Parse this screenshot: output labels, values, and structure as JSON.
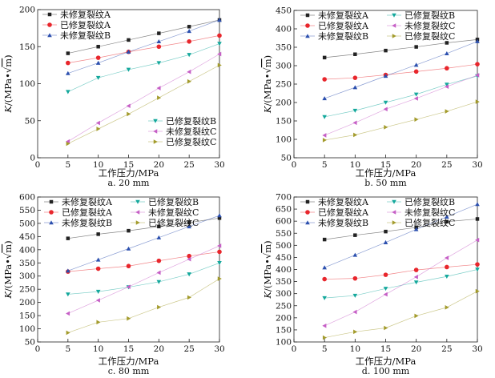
{
  "colors": {
    "unrepaired_A": "#222222",
    "repaired_A": "#e8262c",
    "unrepaired_B": "#2b4fae",
    "repaired_B": "#14a89c",
    "unrepaired_C": "#c65fc6",
    "repaired_C": "#a39b2c"
  },
  "chart_data": [
    {
      "id": "a",
      "type": "line",
      "caption": "a. 20 mm",
      "xlabel": "工作压力/MPa",
      "ylabel_parts": [
        "K",
        "/(MPa•√",
        "m",
        ")"
      ],
      "xlim": [
        0,
        30
      ],
      "ylim": [
        0,
        200
      ],
      "xticks": [
        0,
        5,
        10,
        15,
        20,
        25,
        30
      ],
      "yticks": [
        0,
        50,
        100,
        150,
        200
      ],
      "x": [
        5,
        10,
        15,
        20,
        25,
        30
      ],
      "legend_layout": "split",
      "series": [
        {
          "key": "unrepaired_A",
          "name": "未修复裂纹A",
          "marker": "square",
          "values": [
            141,
            150,
            159,
            168,
            177,
            186
          ]
        },
        {
          "key": "repaired_A",
          "name": "已修复裂纹A",
          "marker": "circle",
          "values": [
            128,
            135,
            143,
            150,
            157,
            165
          ]
        },
        {
          "key": "unrepaired_B",
          "name": "未修复裂纹B",
          "marker": "tri-up",
          "values": [
            114,
            128,
            143,
            157,
            171,
            186
          ]
        },
        {
          "key": "repaired_B",
          "name": "已修复裂纹B",
          "marker": "tri-down",
          "values": [
            89,
            108,
            119,
            128,
            139,
            154
          ]
        },
        {
          "key": "unrepaired_C",
          "name": "未修复裂纹C",
          "marker": "tri-left",
          "values": [
            22,
            47,
            70,
            94,
            116,
            140
          ]
        },
        {
          "key": "repaired_C",
          "name": "已修复裂纹C",
          "marker": "tri-right",
          "values": [
            19,
            39,
            59,
            81,
            103,
            125
          ]
        }
      ]
    },
    {
      "id": "b",
      "type": "line",
      "caption": "b. 50 mm",
      "xlabel": "工作压力/MPa",
      "ylabel_parts": [
        "K",
        "/(MPa•√",
        "m",
        ")"
      ],
      "xlim": [
        0,
        30
      ],
      "ylim": [
        50,
        450
      ],
      "xticks": [
        0,
        5,
        10,
        15,
        20,
        25,
        30
      ],
      "yticks": [
        50,
        100,
        150,
        200,
        250,
        300,
        350,
        400,
        450
      ],
      "x": [
        5,
        10,
        15,
        20,
        25,
        30
      ],
      "legend_layout": "grid",
      "series": [
        {
          "key": "unrepaired_A",
          "name": "未修复裂纹A",
          "marker": "square",
          "values": [
            322,
            331,
            341,
            351,
            362,
            371
          ]
        },
        {
          "key": "repaired_A",
          "name": "已修复裂纹A",
          "marker": "circle",
          "values": [
            263,
            267,
            275,
            284,
            293,
            304
          ]
        },
        {
          "key": "unrepaired_B",
          "name": "未修复裂纹B",
          "marker": "tri-up",
          "values": [
            211,
            241,
            272,
            302,
            333,
            366
          ]
        },
        {
          "key": "repaired_B",
          "name": "已修复裂纹B",
          "marker": "tri-down",
          "values": [
            161,
            178,
            200,
            222,
            249,
            272
          ]
        },
        {
          "key": "unrepaired_C",
          "name": "未修复裂纹C",
          "marker": "tri-left",
          "values": [
            111,
            145,
            182,
            211,
            243,
            274
          ]
        },
        {
          "key": "repaired_C",
          "name": "已修复裂纹C",
          "marker": "tri-right",
          "values": [
            98,
            112,
            133,
            154,
            176,
            202
          ]
        }
      ]
    },
    {
      "id": "c",
      "type": "line",
      "caption": "c. 80 mm",
      "xlabel": "工作压力/MPa",
      "ylabel_parts": [
        "K",
        "/(MPa•√",
        "m",
        ")"
      ],
      "xlim": [
        0,
        30
      ],
      "ylim": [
        50,
        600
      ],
      "xticks": [
        0,
        5,
        10,
        15,
        20,
        25,
        30
      ],
      "yticks": [
        50,
        100,
        150,
        200,
        250,
        300,
        350,
        400,
        450,
        500,
        550,
        600
      ],
      "x": [
        5,
        10,
        15,
        20,
        25,
        30
      ],
      "legend_layout": "grid",
      "series": [
        {
          "key": "unrepaired_A",
          "name": "未修复裂纹A",
          "marker": "square",
          "values": [
            443,
            459,
            472,
            488,
            503,
            520
          ]
        },
        {
          "key": "repaired_A",
          "name": "已修复裂纹A",
          "marker": "circle",
          "values": [
            317,
            328,
            338,
            358,
            376,
            392
          ]
        },
        {
          "key": "unrepaired_B",
          "name": "未修复裂纹B",
          "marker": "tri-up",
          "values": [
            320,
            362,
            404,
            446,
            488,
            530
          ]
        },
        {
          "key": "repaired_B",
          "name": "已修复裂纹B",
          "marker": "tri-down",
          "values": [
            231,
            241,
            258,
            278,
            307,
            350
          ]
        },
        {
          "key": "unrepaired_C",
          "name": "未修复裂纹C",
          "marker": "tri-left",
          "values": [
            158,
            208,
            259,
            313,
            364,
            415
          ]
        },
        {
          "key": "repaired_C",
          "name": "已修复裂纹C",
          "marker": "tri-right",
          "values": [
            85,
            125,
            139,
            182,
            219,
            290
          ]
        }
      ]
    },
    {
      "id": "d",
      "type": "line",
      "caption": "d. 100 mm",
      "xlabel": "工作压力/MPa",
      "ylabel_parts": [
        "K",
        "/(MPa•√",
        "m",
        ")"
      ],
      "xlim": [
        0,
        30
      ],
      "ylim": [
        100,
        700
      ],
      "xticks": [
        0,
        5,
        10,
        15,
        20,
        25,
        30
      ],
      "yticks": [
        100,
        150,
        200,
        250,
        300,
        350,
        400,
        450,
        500,
        550,
        600,
        650,
        700
      ],
      "x": [
        5,
        10,
        15,
        20,
        25,
        30
      ],
      "legend_layout": "grid",
      "series": [
        {
          "key": "unrepaired_A",
          "name": "未修复裂纹A",
          "marker": "square",
          "values": [
            524,
            542,
            557,
            574,
            598,
            609
          ]
        },
        {
          "key": "repaired_A",
          "name": "已修复裂纹A",
          "marker": "circle",
          "values": [
            360,
            363,
            378,
            398,
            410,
            421
          ]
        },
        {
          "key": "unrepaired_B",
          "name": "未修复裂纹B",
          "marker": "tri-up",
          "values": [
            408,
            460,
            512,
            566,
            618,
            670
          ]
        },
        {
          "key": "repaired_B",
          "name": "已修复裂纹B",
          "marker": "tri-down",
          "values": [
            282,
            292,
            321,
            347,
            371,
            400
          ]
        },
        {
          "key": "unrepaired_C",
          "name": "未修复裂纹C",
          "marker": "tri-left",
          "values": [
            167,
            224,
            297,
            369,
            448,
            522
          ]
        },
        {
          "key": "repaired_C",
          "name": "已修复裂纹C",
          "marker": "tri-right",
          "values": [
            118,
            142,
            158,
            208,
            243,
            310
          ]
        }
      ]
    }
  ]
}
